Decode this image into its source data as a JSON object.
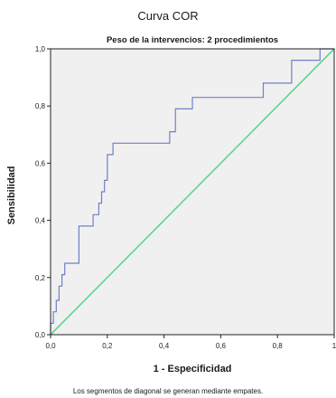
{
  "chart_data": {
    "type": "line",
    "title": "Curva COR",
    "subtitle": "Peso de la intervencios: 2 procedimientos",
    "xlabel": "1 - Especificidad",
    "ylabel": "Sensibilidad",
    "xlim": [
      0,
      1
    ],
    "ylim": [
      0,
      1
    ],
    "x_ticks": [
      0,
      0.2,
      0.4,
      0.6,
      0.8,
      1.0
    ],
    "x_tick_labels": [
      "0,0",
      "0,2",
      "0,4",
      "0,6",
      "0,8",
      "1"
    ],
    "y_ticks": [
      0,
      0.2,
      0.4,
      0.6,
      0.8,
      1.0
    ],
    "y_tick_labels": [
      "0,0",
      "0,2",
      "0,4",
      "0,6",
      "0,8",
      "1,0"
    ],
    "grid": false,
    "footnote": "Los segmentos de diagonal se generan mediante empates.",
    "colors": {
      "plot_background": "#f0f0f0",
      "roc_curve": "#7080c8",
      "reference_line": "#5ed58e"
    },
    "series": [
      {
        "x": [
          0,
          0,
          0.01,
          0.01,
          0.02,
          0.02,
          0.03,
          0.03,
          0.04,
          0.04,
          0.05,
          0.05,
          0.1,
          0.1,
          0.15,
          0.15,
          0.17,
          0.17,
          0.18,
          0.18,
          0.19,
          0.19,
          0.2,
          0.2,
          0.22,
          0.22,
          0.42,
          0.42,
          0.44,
          0.44,
          0.5,
          0.5,
          0.75,
          0.75,
          0.85,
          0.85,
          0.95,
          0.95,
          0.97,
          0.97,
          1.0
        ],
        "y": [
          0,
          0.04,
          0.04,
          0.08,
          0.08,
          0.12,
          0.12,
          0.17,
          0.17,
          0.21,
          0.21,
          0.25,
          0.25,
          0.38,
          0.38,
          0.42,
          0.42,
          0.46,
          0.46,
          0.5,
          0.5,
          0.54,
          0.54,
          0.63,
          0.63,
          0.67,
          0.67,
          0.71,
          0.71,
          0.79,
          0.79,
          0.83,
          0.83,
          0.88,
          0.88,
          0.96,
          0.96,
          1.0,
          1.0,
          1.0,
          1.0
        ]
      },
      {
        "x": [
          0,
          1
        ],
        "y": [
          0,
          1
        ]
      }
    ]
  }
}
